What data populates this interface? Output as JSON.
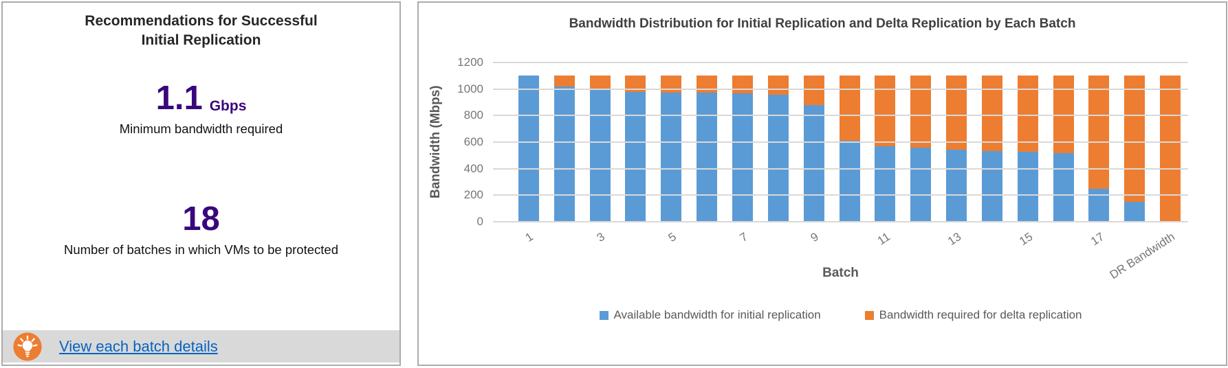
{
  "left_panel": {
    "title_line1": "Recommendations for Successful",
    "title_line2": "Initial Replication",
    "bandwidth_metric": {
      "value": "1.1",
      "unit": "Gbps",
      "caption": "Minimum bandwidth required"
    },
    "batches_metric": {
      "value": "18",
      "caption": "Number of batches in which VMs to be protected"
    },
    "footer": {
      "icon": "lightbulb-icon",
      "icon_color": "#ED7D31",
      "link_label": "View each batch details",
      "link_color": "#0563C1"
    }
  },
  "chart_data": {
    "type": "bar",
    "stacked": true,
    "title": "Bandwidth Distribution for Initial Replication and Delta Replication by Each Batch",
    "xlabel": "Batch",
    "ylabel": "Bandwidth (Mbps)",
    "ylim": [
      0,
      1200
    ],
    "ytick_step": 200,
    "grid": true,
    "legend_position": "bottom",
    "categories": [
      "1",
      "2",
      "3",
      "4",
      "5",
      "6",
      "7",
      "8",
      "9",
      "10",
      "11",
      "12",
      "13",
      "14",
      "15",
      "16",
      "17",
      "18",
      "DR Bandwidth"
    ],
    "xtick_labels_shown": [
      "1",
      "3",
      "5",
      "7",
      "9",
      "11",
      "13",
      "15",
      "17",
      "DR Bandwidth"
    ],
    "series": [
      {
        "name": "Available bandwidth for initial replication",
        "color": "#5B9BD5",
        "values": [
          1100,
          1020,
          1000,
          980,
          975,
          970,
          965,
          955,
          880,
          610,
          570,
          560,
          545,
          535,
          530,
          515,
          250,
          150,
          0
        ]
      },
      {
        "name": "Bandwidth required for delta replication",
        "color": "#ED7D31",
        "values": [
          0,
          80,
          100,
          120,
          125,
          130,
          135,
          145,
          220,
          490,
          530,
          540,
          555,
          565,
          570,
          585,
          850,
          950,
          1100
        ]
      }
    ]
  },
  "colors": {
    "accent_purple": "#38077D",
    "panel_border": "#ABABAB",
    "footer_gray": "#D9D9D9",
    "gridline_gray": "#D9D9D9"
  }
}
